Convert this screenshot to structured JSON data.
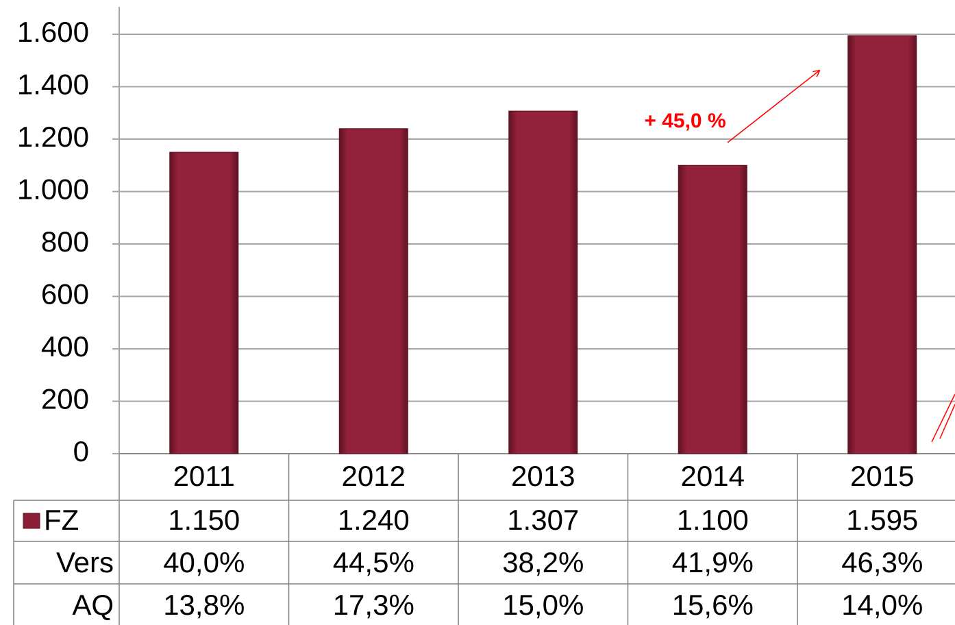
{
  "chart_data": {
    "type": "bar",
    "categories": [
      "2011",
      "2012",
      "2013",
      "2014",
      "2015"
    ],
    "series": [
      {
        "name": "FZ",
        "color": "#8b1e35",
        "values": [
          1150,
          1240,
          1307,
          1100,
          1595
        ],
        "value_labels": [
          "1.150",
          "1.240",
          "1.307",
          "1.100",
          "1.595"
        ]
      }
    ],
    "table_rows": [
      {
        "name": "Vers",
        "values": [
          "40,0%",
          "44,5%",
          "38,2%",
          "41,9%",
          "46,3%"
        ]
      },
      {
        "name": "AQ",
        "values": [
          "13,8%",
          "17,3%",
          "15,0%",
          "15,6%",
          "14,0%"
        ]
      }
    ],
    "annotation": "+ 45,0 %",
    "ylim": [
      0,
      1600
    ],
    "yticks": [
      0,
      200,
      400,
      600,
      800,
      {
        "value": 1000,
        "label": "1.000"
      },
      {
        "value": 1200,
        "label": "1.200"
      },
      {
        "value": 1400,
        "label": "1.400"
      },
      {
        "value": 1600,
        "label": "1.600"
      }
    ],
    "grid": true
  }
}
